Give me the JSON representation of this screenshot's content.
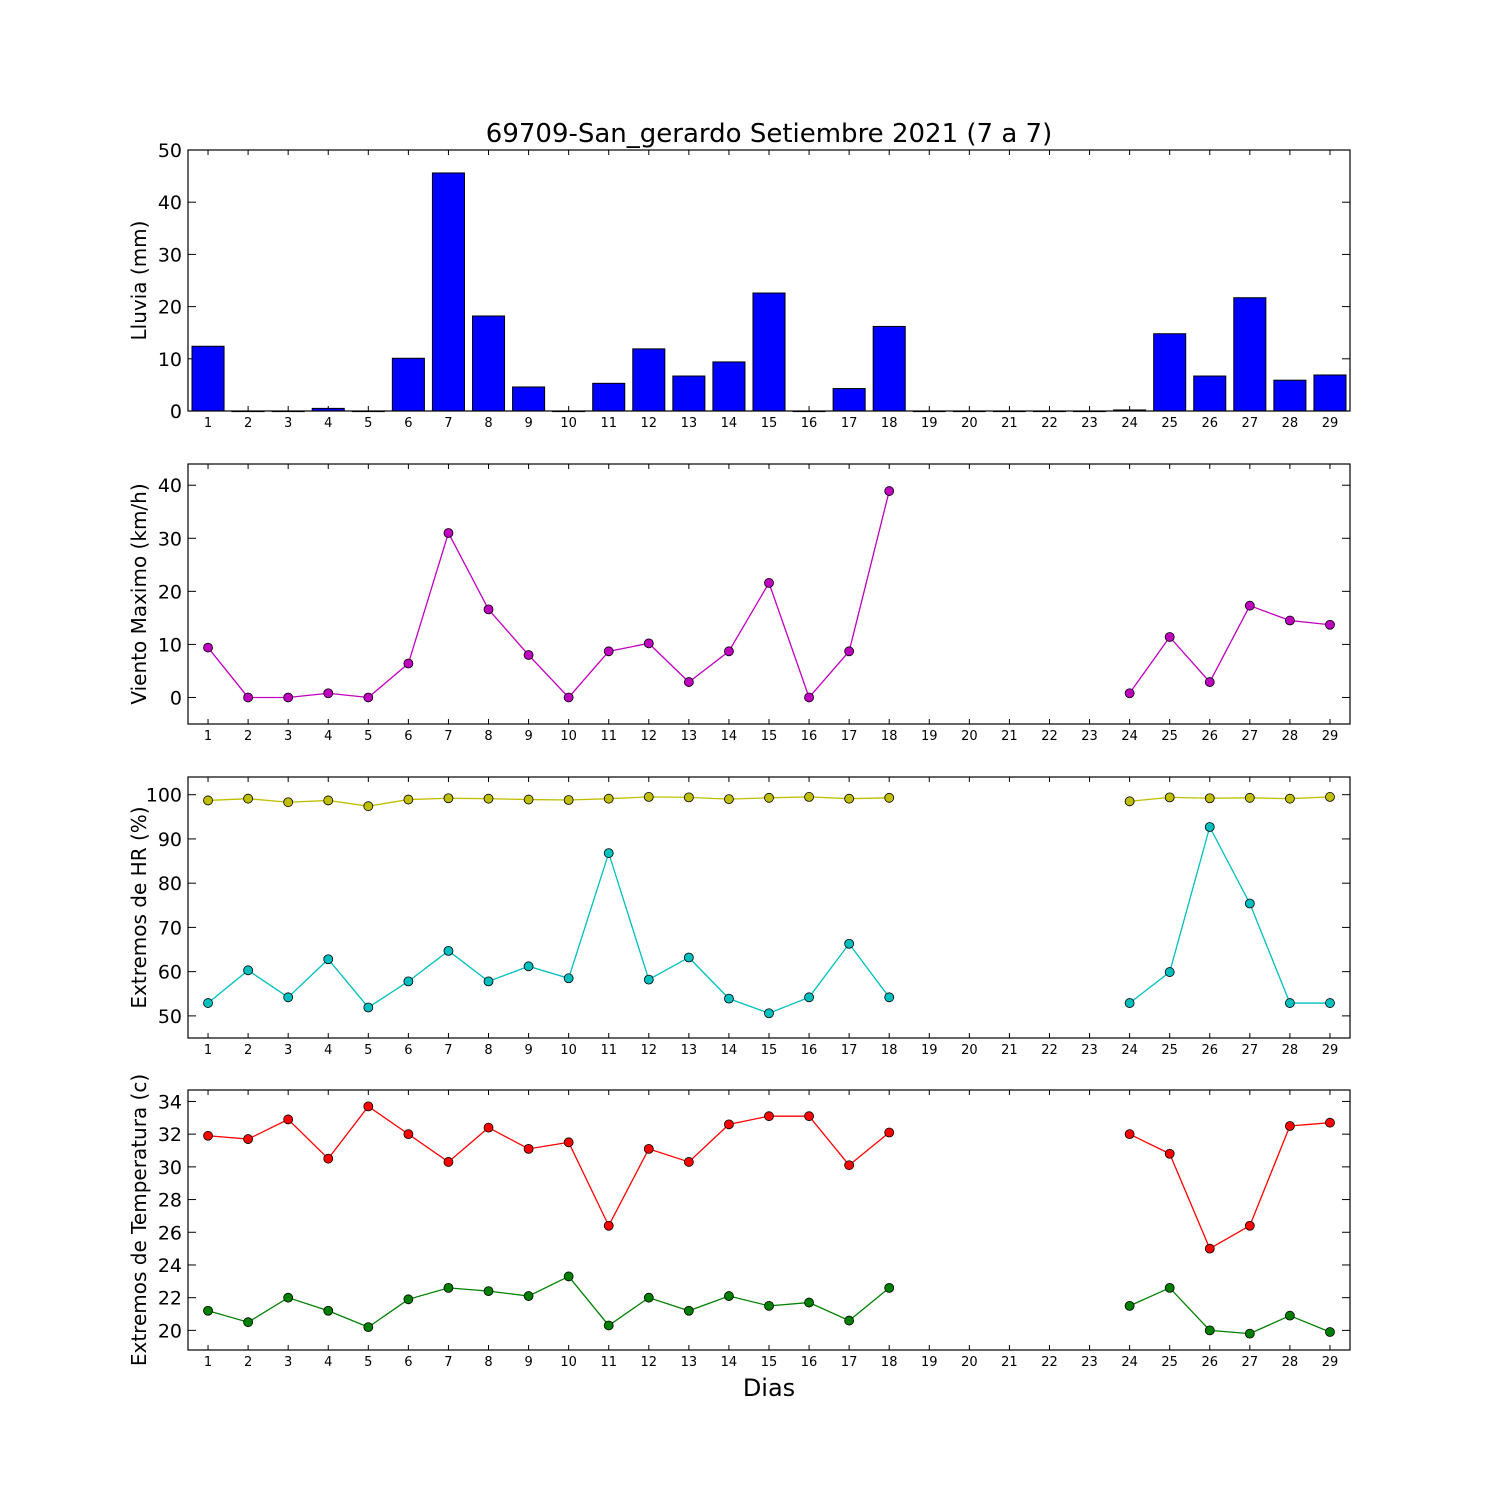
{
  "figure": {
    "title": "69709-San_gerardo Setiembre 2021  (7 a 7)",
    "xlabel": "Dias"
  },
  "chart_data": [
    {
      "type": "bar",
      "ylabel": "Lluvia (mm)",
      "ylim": [
        0,
        50
      ],
      "yticks": [
        0,
        10,
        20,
        30,
        40,
        50
      ],
      "x": [
        1,
        2,
        3,
        4,
        5,
        6,
        7,
        8,
        9,
        10,
        11,
        12,
        13,
        14,
        15,
        16,
        17,
        18,
        19,
        20,
        21,
        22,
        23,
        24,
        25,
        26,
        27,
        28,
        29
      ],
      "series": [
        {
          "color": "#0000ff",
          "values": [
            12.4,
            0,
            0,
            0.5,
            0,
            10.1,
            45.6,
            18.2,
            4.6,
            0,
            5.3,
            11.9,
            6.7,
            9.4,
            22.6,
            0,
            4.3,
            16.2,
            0,
            0,
            0,
            0,
            0,
            0.2,
            14.8,
            6.7,
            21.7,
            5.9,
            6.9
          ]
        }
      ]
    },
    {
      "type": "line",
      "ylabel": "Viento Maximo (km/h)",
      "ylim": [
        -5,
        44
      ],
      "yticks": [
        0,
        10,
        20,
        30,
        40
      ],
      "x": [
        1,
        2,
        3,
        4,
        5,
        6,
        7,
        8,
        9,
        10,
        11,
        12,
        13,
        14,
        15,
        16,
        17,
        18,
        19,
        20,
        21,
        22,
        23,
        24,
        25,
        26,
        27,
        28,
        29
      ],
      "series": [
        {
          "color": "#bf00bf",
          "values": [
            9.4,
            0,
            0,
            0.8,
            0,
            6.4,
            31,
            16.6,
            8,
            0,
            8.7,
            10.2,
            2.9,
            8.7,
            21.6,
            0,
            8.7,
            38.9,
            null,
            null,
            null,
            null,
            null,
            0.8,
            11.4,
            2.9,
            17.3,
            14.5,
            13.7
          ]
        }
      ]
    },
    {
      "type": "line",
      "ylabel": "Extremos de HR (%)",
      "ylim": [
        45,
        104
      ],
      "yticks": [
        50,
        60,
        70,
        80,
        90,
        100
      ],
      "x": [
        1,
        2,
        3,
        4,
        5,
        6,
        7,
        8,
        9,
        10,
        11,
        12,
        13,
        14,
        15,
        16,
        17,
        18,
        19,
        20,
        21,
        22,
        23,
        24,
        25,
        26,
        27,
        28,
        29
      ],
      "series": [
        {
          "color": "#bfbf00",
          "values": [
            98.7,
            99.1,
            98.3,
            98.7,
            97.4,
            98.9,
            99.2,
            99.1,
            98.9,
            98.8,
            99.1,
            99.5,
            99.4,
            99.0,
            99.3,
            99.5,
            99.1,
            99.3,
            null,
            null,
            null,
            null,
            null,
            98.5,
            99.4,
            99.2,
            99.3,
            99.1,
            99.5
          ]
        },
        {
          "color": "#00bfbf",
          "values": [
            52.9,
            60.3,
            54.2,
            62.8,
            51.9,
            57.8,
            64.7,
            57.8,
            61.2,
            58.5,
            86.8,
            58.2,
            63.2,
            53.9,
            50.6,
            54.2,
            66.3,
            54.2,
            null,
            null,
            null,
            null,
            null,
            52.9,
            59.9,
            92.7,
            75.4,
            52.9,
            52.9
          ]
        }
      ]
    },
    {
      "type": "line",
      "ylabel": "Extremos de Temperatura (c)",
      "ylim": [
        18.8,
        34.7
      ],
      "yticks": [
        20,
        22,
        24,
        26,
        28,
        30,
        32,
        34
      ],
      "x": [
        1,
        2,
        3,
        4,
        5,
        6,
        7,
        8,
        9,
        10,
        11,
        12,
        13,
        14,
        15,
        16,
        17,
        18,
        19,
        20,
        21,
        22,
        23,
        24,
        25,
        26,
        27,
        28,
        29
      ],
      "series": [
        {
          "color": "#ff0000",
          "values": [
            31.9,
            31.7,
            32.9,
            30.5,
            33.7,
            32.0,
            30.3,
            32.4,
            31.1,
            31.5,
            26.4,
            31.1,
            30.3,
            32.6,
            33.1,
            33.1,
            30.1,
            32.1,
            null,
            null,
            null,
            null,
            null,
            32.0,
            30.8,
            25.0,
            26.4,
            32.5,
            32.7
          ]
        },
        {
          "color": "#008000",
          "values": [
            21.2,
            20.5,
            22.0,
            21.2,
            20.2,
            21.9,
            22.6,
            22.4,
            22.1,
            23.3,
            20.3,
            22.0,
            21.2,
            22.1,
            21.5,
            21.7,
            20.6,
            22.6,
            null,
            null,
            null,
            null,
            null,
            21.5,
            22.6,
            20.0,
            19.8,
            20.9,
            19.9
          ]
        }
      ]
    }
  ]
}
